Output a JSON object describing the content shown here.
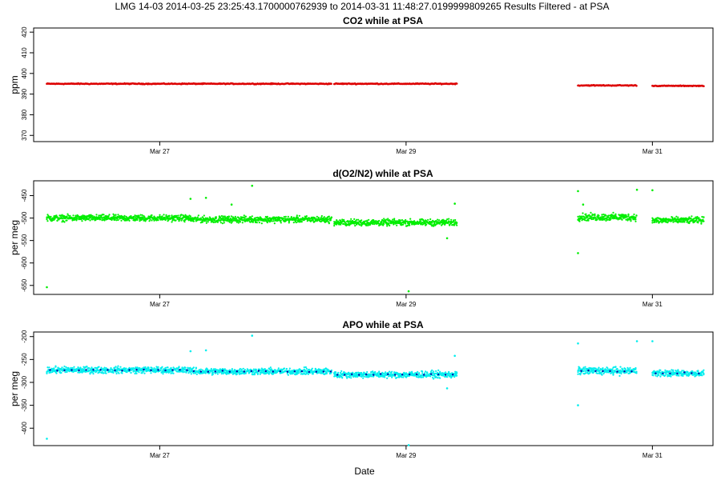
{
  "figure": {
    "title": "LMG   14-03    2014-03-25 23:25:43.1700000762939 to 2014-03-31 11:48:27.0199999809265   Results Filtered - at PSA",
    "xlabel": "Date"
  },
  "chart_data": [
    {
      "type": "scatter",
      "title": "CO2 while at PSA",
      "ylabel": "ppm",
      "xlim": [
        "2014-03-25T23:25:43",
        "2014-03-31T11:48:27"
      ],
      "ylim": [
        367,
        422
      ],
      "yticks": [
        370,
        380,
        390,
        400,
        410,
        420
      ],
      "xticks": [
        "2014-03-27",
        "2014-03-29",
        "2014-03-31"
      ],
      "xtick_labels": [
        "Mar 27",
        "Mar 29",
        "Mar 31"
      ],
      "grid": false,
      "color": "#dd0000",
      "segments": [
        {
          "start": "2014-03-26T02:00",
          "end": "2014-03-28T09:30",
          "value": 395.0,
          "spread": 0.6
        },
        {
          "start": "2014-03-28T10:00",
          "end": "2014-03-29T10:00",
          "value": 395.0,
          "spread": 0.6
        },
        {
          "start": "2014-03-30T09:30",
          "end": "2014-03-30T21:00",
          "value": 394.2,
          "spread": 0.6
        },
        {
          "start": "2014-03-31T00:00",
          "end": "2014-03-31T10:00",
          "value": 394.0,
          "spread": 0.5
        }
      ],
      "outliers": []
    },
    {
      "type": "scatter",
      "title": "d(O2/N2) while at PSA",
      "ylabel": "per meg",
      "xlim": [
        "2014-03-25T23:25:43",
        "2014-03-31T11:48:27"
      ],
      "ylim": [
        -670,
        -417
      ],
      "yticks": [
        -450,
        -500,
        -550,
        -600,
        -650
      ],
      "xticks": [
        "2014-03-27",
        "2014-03-29",
        "2014-03-31"
      ],
      "xtick_labels": [
        "Mar 27",
        "Mar 29",
        "Mar 31"
      ],
      "grid": false,
      "color": "#00ee00",
      "segments": [
        {
          "start": "2014-03-26T02:00",
          "end": "2014-03-27T06:00",
          "value": -500,
          "spread": 8
        },
        {
          "start": "2014-03-27T06:00",
          "end": "2014-03-28T09:30",
          "value": -503,
          "spread": 8
        },
        {
          "start": "2014-03-28T10:00",
          "end": "2014-03-29T10:00",
          "value": -510,
          "spread": 8
        },
        {
          "start": "2014-03-30T09:30",
          "end": "2014-03-30T21:00",
          "value": -498,
          "spread": 9
        },
        {
          "start": "2014-03-31T00:00",
          "end": "2014-03-31T10:00",
          "value": -505,
          "spread": 8
        }
      ],
      "outliers": [
        {
          "x": "2014-03-26T02:00",
          "y": -654
        },
        {
          "x": "2014-03-27T06:00",
          "y": -457
        },
        {
          "x": "2014-03-27T09:00",
          "y": -455
        },
        {
          "x": "2014-03-27T14:00",
          "y": -470
        },
        {
          "x": "2014-03-27T18:00",
          "y": -428
        },
        {
          "x": "2014-03-29T00:30",
          "y": -663
        },
        {
          "x": "2014-03-29T08:00",
          "y": -545
        },
        {
          "x": "2014-03-29T09:30",
          "y": -468
        },
        {
          "x": "2014-03-30T09:30",
          "y": -440
        },
        {
          "x": "2014-03-30T09:30",
          "y": -578
        },
        {
          "x": "2014-03-30T10:30",
          "y": -470
        },
        {
          "x": "2014-03-30T21:00",
          "y": -437
        },
        {
          "x": "2014-03-31T00:00",
          "y": -438
        }
      ]
    },
    {
      "type": "scatter",
      "title": "APO while at PSA",
      "ylabel": "per meg",
      "xlim": [
        "2014-03-25T23:25:43",
        "2014-03-31T11:48:27"
      ],
      "ylim": [
        -438,
        -190
      ],
      "yticks": [
        -200,
        -250,
        -300,
        -350,
        -400
      ],
      "xticks": [
        "2014-03-27",
        "2014-03-29",
        "2014-03-31"
      ],
      "xtick_labels": [
        "Mar 27",
        "Mar 29",
        "Mar 31"
      ],
      "grid": false,
      "color": "#00eeee",
      "mean_color": "#0000aa",
      "segments": [
        {
          "start": "2014-03-26T02:00",
          "end": "2014-03-27T06:00",
          "value": -273,
          "spread": 8
        },
        {
          "start": "2014-03-27T06:00",
          "end": "2014-03-28T09:30",
          "value": -276,
          "spread": 8
        },
        {
          "start": "2014-03-28T10:00",
          "end": "2014-03-29T10:00",
          "value": -283,
          "spread": 8
        },
        {
          "start": "2014-03-30T09:30",
          "end": "2014-03-30T21:00",
          "value": -275,
          "spread": 9
        },
        {
          "start": "2014-03-31T00:00",
          "end": "2014-03-31T10:00",
          "value": -280,
          "spread": 8
        }
      ],
      "outliers": [
        {
          "x": "2014-03-26T02:00",
          "y": -423
        },
        {
          "x": "2014-03-27T06:00",
          "y": -232
        },
        {
          "x": "2014-03-27T09:00",
          "y": -230
        },
        {
          "x": "2014-03-27T18:00",
          "y": -198
        },
        {
          "x": "2014-03-29T00:30",
          "y": -437
        },
        {
          "x": "2014-03-29T08:00",
          "y": -313
        },
        {
          "x": "2014-03-29T09:30",
          "y": -242
        },
        {
          "x": "2014-03-30T09:30",
          "y": -215
        },
        {
          "x": "2014-03-30T09:30",
          "y": -350
        },
        {
          "x": "2014-03-30T21:00",
          "y": -210
        },
        {
          "x": "2014-03-31T00:00",
          "y": -210
        }
      ]
    }
  ]
}
